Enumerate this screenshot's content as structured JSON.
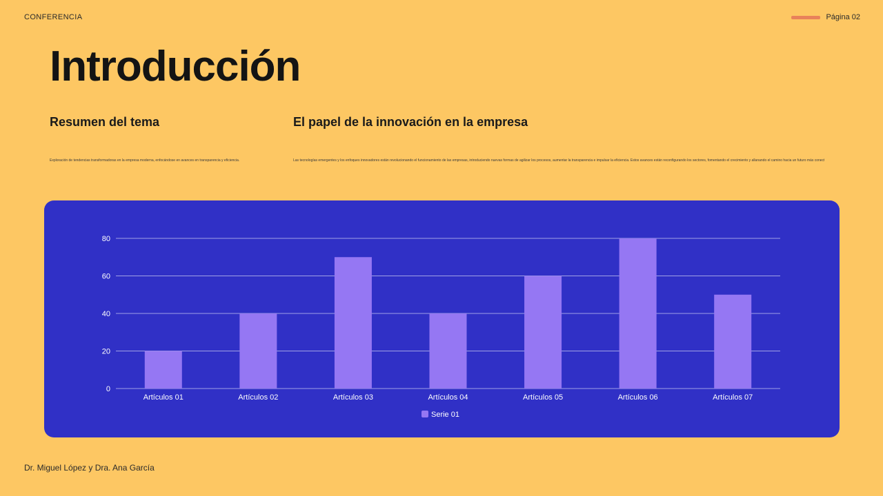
{
  "header": {
    "label": "CONFERENCIA",
    "page": "Página 02"
  },
  "title": "Introducción",
  "sections": [
    {
      "heading": "Resumen del tema",
      "text": "Exploración de tendencias transformadoras en la empresa moderna, enfocándose en avances en transparencia y eficiencia."
    },
    {
      "heading": "El papel de la innovación en la empresa",
      "text": "Las tecnologías emergentes y los enfoques innovadores están revolucionando el funcionamiento de las empresas, introduciendo nuevas formas de agilizar los procesos, aumentar la transparencia e impulsar la eficiencia. Estos avances están reconfigurando los sectores, fomentando el crecimiento y allanando el camino hacia un futuro más conectado e innovador."
    }
  ],
  "footer": {
    "authors": "Dr. Miguel López y Dra. Ana García"
  },
  "colors": {
    "background": "#FDC763",
    "card": "#3030C6",
    "bar": "#9577F3",
    "accent": "#E8825A"
  },
  "chart_data": {
    "type": "bar",
    "categories": [
      "Artículos 01",
      "Artículos 02",
      "Artículos 03",
      "Artículos 04",
      "Artículos 05",
      "Artículos 06",
      "Artículos 07"
    ],
    "series": [
      {
        "name": "Serie 01",
        "values": [
          20,
          40,
          70,
          40,
          60,
          80,
          50
        ]
      }
    ],
    "yticks": [
      0,
      20,
      40,
      60,
      80
    ],
    "ylim": [
      0,
      80
    ],
    "grid": true,
    "legend": "bottom-center"
  }
}
